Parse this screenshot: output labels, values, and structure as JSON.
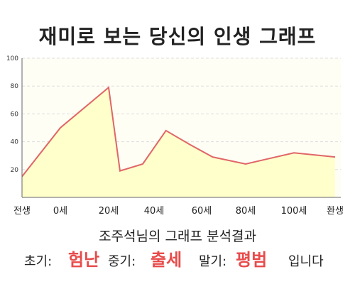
{
  "header": {
    "title": "재미로 보는 당신의 인생 그래프"
  },
  "result": {
    "title": "조주석님의 그래프 분석결과",
    "early_label": "초기:",
    "early_value": "험난",
    "middle_label": "중기:",
    "middle_value": "출세",
    "late_label": "말기:",
    "late_value": "평범",
    "suffix": "입니다",
    "highlight_color": "#e84b4b"
  },
  "chart_data": {
    "type": "area",
    "title": "",
    "xlabel": "",
    "ylabel": "",
    "x_ticks": [
      "전생",
      "0세",
      "20세",
      "40세",
      "60세",
      "80세",
      "100세",
      "환생"
    ],
    "y_ticks": [
      "20",
      "40",
      "60",
      "80",
      "100"
    ],
    "ylim": [
      0,
      100
    ],
    "grid": true,
    "series": [
      {
        "values": [
          {
            "x": "전생",
            "y": 15
          },
          {
            "x": "0세",
            "y": 50
          },
          {
            "x": "20세",
            "y": 79
          },
          {
            "x": "25세",
            "y": 19
          },
          {
            "x": "35세",
            "y": 24
          },
          {
            "x": "45세",
            "y": 48
          },
          {
            "x": "55세",
            "y": 38
          },
          {
            "x": "65세",
            "y": 29
          },
          {
            "x": "80세",
            "y": 24
          },
          {
            "x": "100세",
            "y": 32
          },
          {
            "x": "환생",
            "y": 29
          }
        ]
      }
    ],
    "colors": {
      "line": "#e06666",
      "fill": "#ffffcc",
      "grid": "#dddddd"
    }
  }
}
